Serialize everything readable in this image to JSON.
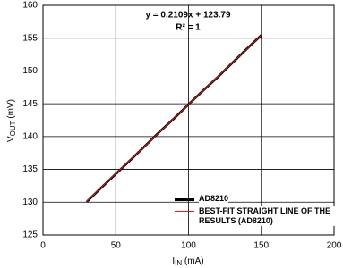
{
  "chart_data": {
    "type": "line",
    "annotation_lines": [
      "y = 0.2109x + 123.79",
      "R² = 1"
    ],
    "x_label": {
      "main": "I",
      "sub": "IN",
      "unit": " (mA)"
    },
    "y_label": {
      "main": "V",
      "sub": "OUT",
      "unit": " (mV)"
    },
    "x": [
      30,
      40,
      50,
      60,
      70,
      80,
      90,
      100,
      110,
      120,
      130,
      140,
      150
    ],
    "series": [
      {
        "name": "AD8210",
        "color": "#000000",
        "values": [
          130.05,
          132.2,
          134.3,
          136.4,
          138.55,
          140.7,
          142.75,
          144.9,
          147.0,
          149.05,
          151.2,
          153.35,
          155.45
        ]
      },
      {
        "name": "BEST-FIT STRAIGHT LINE OF THE RESULTS (AD8210)",
        "color": "#d62020",
        "values": [
          130.12,
          132.23,
          134.34,
          136.44,
          138.55,
          140.66,
          142.77,
          144.88,
          146.99,
          149.1,
          151.21,
          153.32,
          155.43
        ]
      }
    ],
    "xlim": [
      0,
      200
    ],
    "xticks": [
      0,
      50,
      100,
      150,
      200
    ],
    "ylim": [
      125,
      160
    ],
    "yticks": [
      125,
      130,
      135,
      140,
      145,
      150,
      155,
      160
    ],
    "grid": true
  }
}
